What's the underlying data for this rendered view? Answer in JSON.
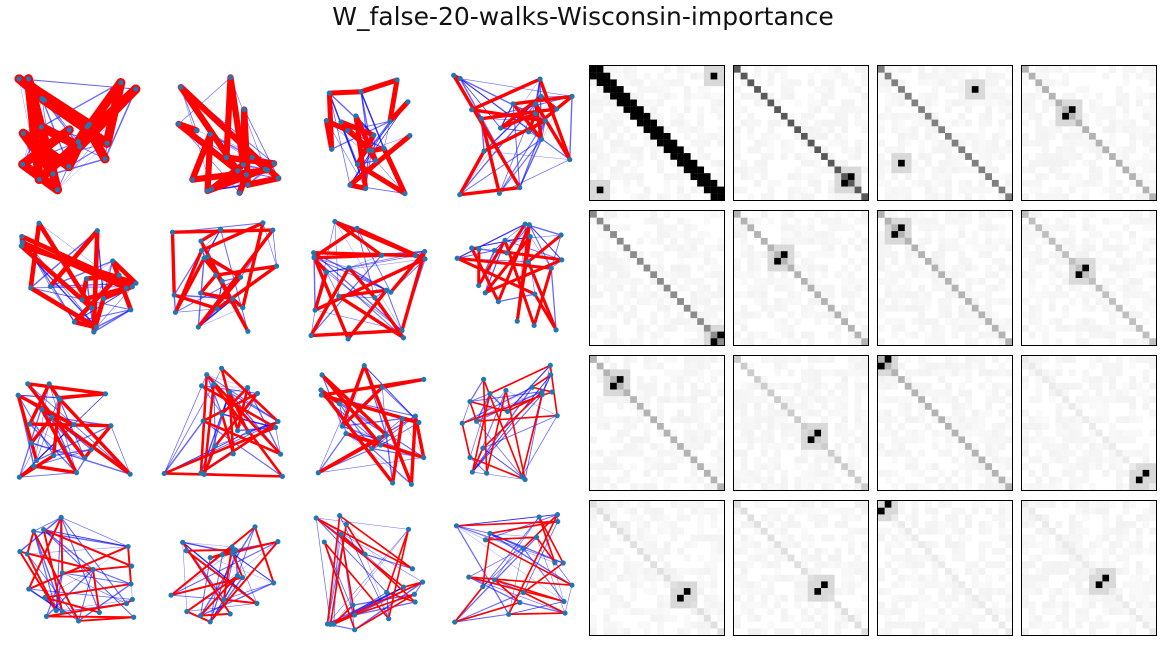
{
  "figure": {
    "title": "W_false-20-walks-Wisconsin-importance"
  },
  "colors": {
    "node": "#1f77b4",
    "walk_edge": "#ff0000",
    "graph_edge": "#0000ff",
    "heatmap_high": "#000000",
    "heatmap_low": "#ffffff"
  },
  "grid": {
    "rows": 4,
    "graph_columns": 4,
    "heatmap_columns": 4
  },
  "walk_length": 20,
  "panels": [
    {
      "index": 1,
      "peak_pair": [
        1,
        18
      ],
      "diagonal_strength": 1.0
    },
    {
      "index": 2,
      "peak_pair": [
        16,
        17
      ],
      "diagonal_strength": 0.65
    },
    {
      "index": 3,
      "peak_pair": [
        3,
        14
      ],
      "diagonal_strength": 0.5
    },
    {
      "index": 4,
      "peak_pair": [
        6,
        7
      ],
      "diagonal_strength": 0.3
    },
    {
      "index": 5,
      "peak_pair": [
        18,
        19
      ],
      "diagonal_strength": 0.45
    },
    {
      "index": 6,
      "peak_pair": [
        6,
        7
      ],
      "diagonal_strength": 0.3
    },
    {
      "index": 7,
      "peak_pair": [
        2,
        3
      ],
      "diagonal_strength": 0.3
    },
    {
      "index": 8,
      "peak_pair": [
        8,
        9
      ],
      "diagonal_strength": 0.25
    },
    {
      "index": 9,
      "peak_pair": [
        3,
        4
      ],
      "diagonal_strength": 0.3
    },
    {
      "index": 10,
      "peak_pair": [
        11,
        12
      ],
      "diagonal_strength": 0.2
    },
    {
      "index": 11,
      "peak_pair": [
        0,
        1
      ],
      "diagonal_strength": 0.3
    },
    {
      "index": 12,
      "peak_pair": [
        17,
        18
      ],
      "diagonal_strength": 0.08
    },
    {
      "index": 13,
      "peak_pair": [
        13,
        14
      ],
      "diagonal_strength": 0.12
    },
    {
      "index": 14,
      "peak_pair": [
        12,
        13
      ],
      "diagonal_strength": 0.12
    },
    {
      "index": 15,
      "peak_pair": [
        0,
        1
      ],
      "diagonal_strength": 0.08
    },
    {
      "index": 16,
      "peak_pair": [
        11,
        12
      ],
      "diagonal_strength": 0.08
    }
  ]
}
